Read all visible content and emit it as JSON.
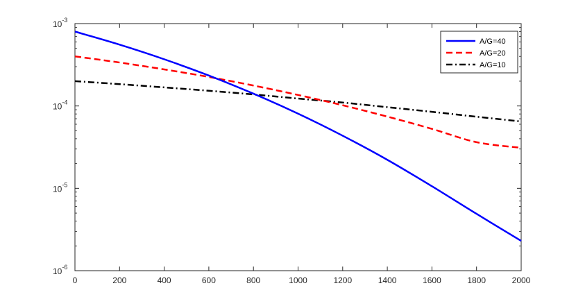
{
  "chart_data": {
    "type": "line",
    "title": "",
    "xlabel": "",
    "ylabel": "",
    "xlim": [
      0,
      2000
    ],
    "ylim": [
      1e-06,
      0.001
    ],
    "yscale": "log",
    "grid": false,
    "legend_position": "top-right",
    "x_ticks": [
      "0",
      "200",
      "400",
      "600",
      "800",
      "1000",
      "1200",
      "1400",
      "1600",
      "1800",
      "2000"
    ],
    "y_ticks": [
      {
        "base": "10",
        "exp": "-6",
        "value": 1e-06
      },
      {
        "base": "10",
        "exp": "-5",
        "value": 1e-05
      },
      {
        "base": "10",
        "exp": "-4",
        "value": 0.0001
      },
      {
        "base": "10",
        "exp": "-3",
        "value": 0.001
      }
    ],
    "x": [
      0,
      200,
      400,
      600,
      800,
      1000,
      1200,
      1400,
      1600,
      1800,
      2000
    ],
    "series": [
      {
        "name": "A/G=40",
        "color": "#0000ff",
        "style": "solid",
        "values": [
          0.0008,
          0.000555,
          0.000369,
          0.000234,
          0.000141,
          8.06e-05,
          4.35e-05,
          2.22e-05,
          1.06e-05,
          4.9e-06,
          2.3e-06
        ]
      },
      {
        "name": "A/G=20",
        "color": "#ff0000",
        "style": "dashed",
        "values": [
          0.0004,
          0.000337,
          0.000278,
          0.000225,
          0.000177,
          0.000136,
          0.000102,
          7.43e-05,
          5.27e-05,
          3.63e-05,
          3.1e-05
        ]
      },
      {
        "name": "A/G=10",
        "color": "#000000",
        "style": "dashdot",
        "values": [
          0.0002,
          0.000184,
          0.000168,
          0.000153,
          0.000138,
          0.000123,
          0.00011,
          9.67e-05,
          8.49e-05,
          7.4e-05,
          6.48e-05
        ]
      }
    ]
  }
}
